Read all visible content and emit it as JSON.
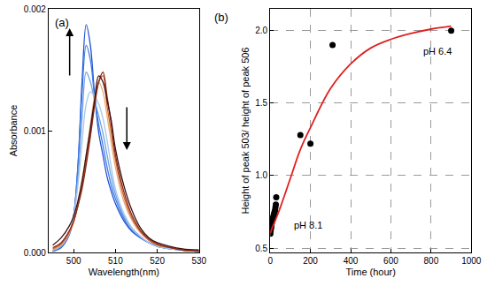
{
  "chart_data": [
    {
      "type": "line",
      "title": "(a)",
      "x_label": "Wavelength(nm)",
      "y_label": "Absorbance",
      "x": [
        495,
        497,
        499,
        500,
        501,
        502,
        503,
        504,
        505,
        506,
        507,
        508,
        509,
        510,
        512,
        514,
        516,
        518,
        520,
        523,
        526,
        530
      ],
      "series": [
        {
          "color": "#1f4fd8",
          "values": [
            1e-05,
            4e-05,
            0.00015,
            0.0003,
            0.0007,
            0.0014,
            0.00187,
            0.0017,
            0.0013,
            0.00098,
            0.0008,
            0.00062,
            0.0005,
            0.0004,
            0.00026,
            0.00017,
            0.00012,
            8e-05,
            5e-05,
            3e-05,
            2e-05,
            1e-05
          ]
        },
        {
          "color": "#3d7be0",
          "values": [
            1e-05,
            4e-05,
            0.00015,
            0.0003,
            0.0007,
            0.0013,
            0.0017,
            0.00158,
            0.00128,
            0.00105,
            0.00088,
            0.0007,
            0.00055,
            0.00044,
            0.00028,
            0.00018,
            0.00012,
            8e-05,
            5e-05,
            3e-05,
            2e-05,
            1e-05
          ]
        },
        {
          "color": "#6fa3e8",
          "values": [
            2e-05,
            5e-05,
            0.00016,
            0.0003,
            0.0006,
            0.0011,
            0.00148,
            0.0014,
            0.00125,
            0.00112,
            0.00098,
            0.0008,
            0.00062,
            0.00048,
            0.0003,
            0.0002,
            0.00013,
            8e-05,
            5e-05,
            3e-05,
            2e-05,
            1e-05
          ]
        },
        {
          "color": "#a7c7ea",
          "values": [
            2e-05,
            6e-05,
            0.00017,
            0.0003,
            0.00055,
            0.0009,
            0.00122,
            0.00132,
            0.00128,
            0.00122,
            0.0011,
            0.00092,
            0.0007,
            0.00052,
            0.00032,
            0.0002,
            0.00013,
            8e-05,
            5e-05,
            3e-05,
            2e-05,
            1e-05
          ]
        },
        {
          "color": "#e8a878",
          "values": [
            2e-05,
            6e-05,
            0.00016,
            0.00025,
            0.0004,
            0.0006,
            0.0008,
            0.00105,
            0.00128,
            0.0014,
            0.00132,
            0.00112,
            0.0009,
            0.0007,
            0.00042,
            0.00026,
            0.00016,
            0.0001,
            6e-05,
            4e-05,
            2e-05,
            1e-05
          ]
        },
        {
          "color": "#d0602a",
          "values": [
            3e-05,
            7e-05,
            0.00017,
            0.00025,
            0.00038,
            0.00055,
            0.00075,
            0.00098,
            0.00122,
            0.0014,
            0.00145,
            0.0012,
            0.00098,
            0.00076,
            0.00046,
            0.00028,
            0.00017,
            0.0001,
            6e-05,
            4e-05,
            2e-05,
            1e-05
          ]
        },
        {
          "color": "#8a2a1a",
          "values": [
            4e-05,
            8e-05,
            0.00018,
            0.00026,
            0.00038,
            0.00052,
            0.00072,
            0.00095,
            0.0012,
            0.0014,
            0.00148,
            0.00128,
            0.00105,
            0.0008,
            0.0005,
            0.0003,
            0.00018,
            0.00011,
            7e-05,
            4e-05,
            2e-05,
            1e-05
          ]
        },
        {
          "color": "#3a1010",
          "values": [
            6e-05,
            0.00012,
            0.00022,
            0.0003,
            0.00042,
            0.00058,
            0.0008,
            0.00102,
            0.00125,
            0.00145,
            0.0014,
            0.00125,
            0.00108,
            0.00085,
            0.00055,
            0.00034,
            0.0002,
            0.00012,
            8e-05,
            5e-05,
            3e-05,
            2e-05
          ]
        }
      ],
      "xlim": [
        494,
        530
      ],
      "xticks": [
        500,
        510,
        520,
        530
      ],
      "ylim": [
        0,
        0.002
      ],
      "yticks": [
        {
          "value": 0,
          "label": "0.000"
        },
        {
          "value": 0.001,
          "label": "0.001"
        },
        {
          "value": 0.002,
          "label": "0.002"
        }
      ],
      "grid": false
    },
    {
      "type": "scatter",
      "title": "(b)",
      "x_label": "Time (hour)",
      "y_label": "Height of peak 503/ height of peak 506",
      "series": [
        {
          "type": "scatter",
          "marker": "circle",
          "color": "#000000",
          "x": [
            1,
            2,
            3,
            4,
            5,
            6,
            7,
            8,
            10,
            12,
            14,
            16,
            18,
            20,
            22,
            24,
            26,
            28,
            30,
            150,
            200,
            310,
            900
          ],
          "values": [
            0.6,
            0.62,
            0.63,
            0.64,
            0.65,
            0.66,
            0.67,
            0.68,
            0.69,
            0.7,
            0.71,
            0.72,
            0.73,
            0.74,
            0.75,
            0.76,
            0.78,
            0.8,
            0.85,
            1.28,
            1.22,
            1.9,
            2.0
          ]
        },
        {
          "type": "line",
          "color": "#e02020",
          "x": [
            0,
            10,
            25,
            50,
            100,
            150,
            200,
            300,
            400,
            500,
            600,
            700,
            800,
            900
          ],
          "values": [
            0.6,
            0.64,
            0.69,
            0.78,
            0.98,
            1.18,
            1.33,
            1.6,
            1.77,
            1.88,
            1.94,
            1.98,
            2.01,
            2.03
          ]
        }
      ],
      "xlim": [
        0,
        1000
      ],
      "xticks": [
        0,
        200,
        400,
        600,
        800,
        1000
      ],
      "ylim": [
        0.47,
        2.15
      ],
      "yticks": [
        0.5,
        {
          "value": 1,
          "label": "1.0"
        },
        1.5,
        {
          "value": 2,
          "label": "2.0"
        }
      ],
      "grid": true,
      "annotations": [
        {
          "text": "pH 8.1",
          "x": 190,
          "y": 0.66
        },
        {
          "text": "pH 6.4",
          "x": 830,
          "y": 1.86
        }
      ]
    }
  ]
}
